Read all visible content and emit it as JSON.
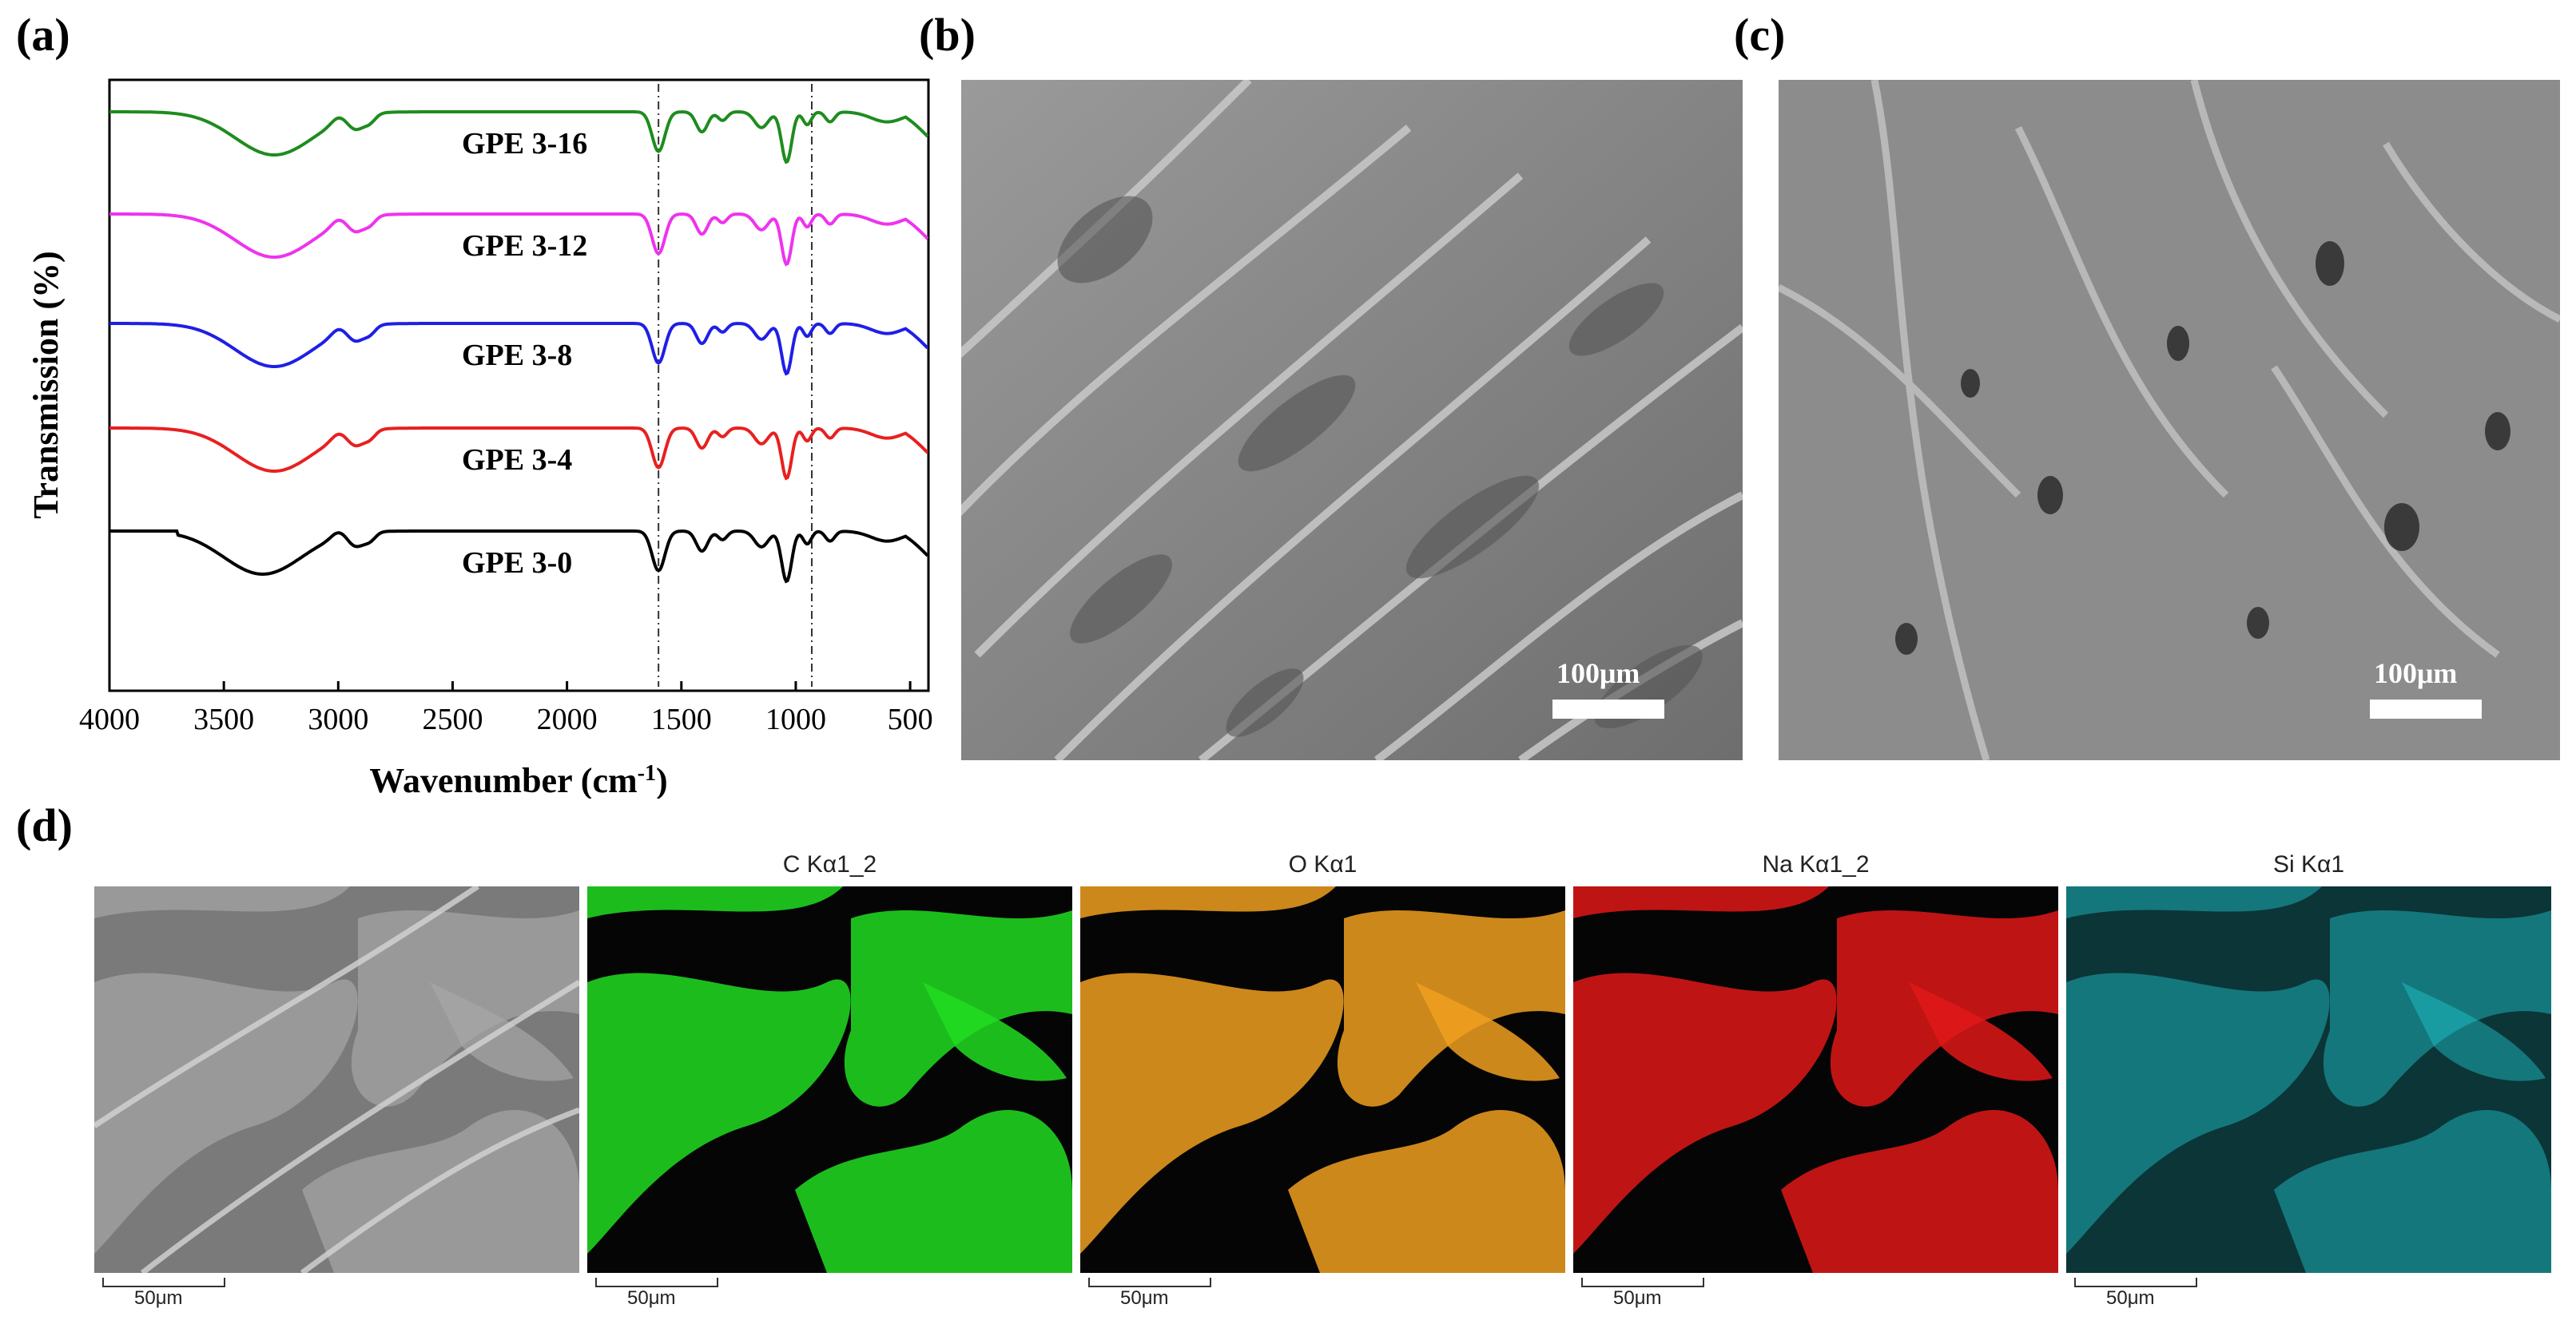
{
  "panels": {
    "a": "(a)",
    "b": "(b)",
    "c": "(c)",
    "d": "(d)"
  },
  "chart_data": {
    "type": "line",
    "title": "",
    "xlabel": "Wavenumber (cm",
    "xlabel_sup": "-1",
    "xlabel_end": ")",
    "ylabel": "Transmission (%)",
    "xlim": [
      4000,
      420
    ],
    "x_reversed": true,
    "xticks": [
      4000,
      3500,
      3000,
      2500,
      2000,
      1500,
      1000,
      500
    ],
    "yticks_shown": false,
    "reference_lines": [
      1600,
      930
    ],
    "series": [
      {
        "name": "GPE 3-16",
        "color": "#1e8c1e",
        "offset": 4
      },
      {
        "name": "GPE 3-12",
        "color": "#ee33ee",
        "offset": 3
      },
      {
        "name": "GPE 3-8",
        "color": "#1f1fe6",
        "offset": 2
      },
      {
        "name": "GPE 3-4",
        "color": "#e82020",
        "offset": 1
      },
      {
        "name": "GPE 3-0",
        "color": "#000000",
        "offset": 0
      }
    ]
  },
  "sem_b": {
    "scale_label": "100μm"
  },
  "sem_c": {
    "scale_label": "100μm"
  },
  "eds": {
    "maps": [
      {
        "title": "",
        "scale": "50μm",
        "color": "#9a9a9a"
      },
      {
        "title": "C Kα1_2",
        "scale": "50μm",
        "color": "#22dd22"
      },
      {
        "title": "O Kα1",
        "scale": "50μm",
        "color": "#f0a020"
      },
      {
        "title": "Na Kα1_2",
        "scale": "50μm",
        "color": "#e01818"
      },
      {
        "title": "Si Kα1",
        "scale": "50μm",
        "color": "#20c8d0"
      }
    ]
  }
}
